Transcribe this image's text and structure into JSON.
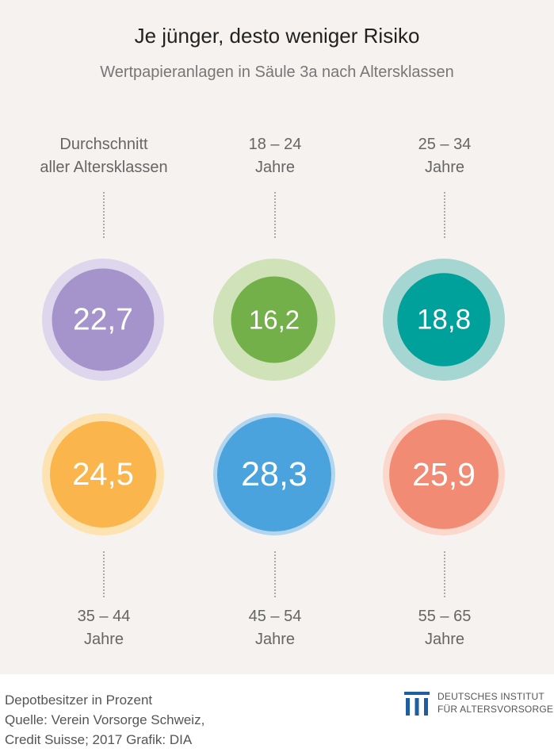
{
  "title": "Je jünger, desto weniger Risiko",
  "subtitle": "Wertpapieranlagen in Säule 3a nach Altersklassen",
  "chart_data": {
    "type": "bubble",
    "unit": "Depotbesitzer in Prozent",
    "groups": [
      {
        "label_line1": "Durchschnitt",
        "label_line2": "aller Altersklassen",
        "value": 22.7,
        "value_label": "22,7",
        "color": "#a594cb",
        "halo": "#ddd6ec"
      },
      {
        "label_line1": "18 – 24",
        "label_line2": "Jahre",
        "value": 16.2,
        "value_label": "16,2",
        "color": "#74b04a",
        "halo": "#cfe2b8"
      },
      {
        "label_line1": "25 – 34",
        "label_line2": "Jahre",
        "value": 18.8,
        "value_label": "18,8",
        "color": "#00a19a",
        "halo": "#a6d6d1"
      },
      {
        "label_line1": "35 – 44",
        "label_line2": "Jahre",
        "value": 24.5,
        "value_label": "24,5",
        "color": "#fab64c",
        "halo": "#fde3b2"
      },
      {
        "label_line1": "45 – 54",
        "label_line2": "Jahre",
        "value": 28.3,
        "value_label": "28,3",
        "color": "#4aa3dd",
        "halo": "#b3d6f0"
      },
      {
        "label_line1": "55 – 65",
        "label_line2": "Jahre",
        "value": 25.9,
        "value_label": "25,9",
        "color": "#f28b74",
        "halo": "#fbd7cc"
      }
    ]
  },
  "footer": {
    "line1": "Depotbesitzer in Prozent",
    "line2": "Quelle: Verein Vorsorge Schweiz,",
    "line3": "Credit Suisse; 2017  Grafik: DIA"
  },
  "logo": {
    "line1": "DEUTSCHES INSTITUT",
    "line2": "FÜR ALTERSVORSORGE",
    "color": "#1f5fa0"
  }
}
